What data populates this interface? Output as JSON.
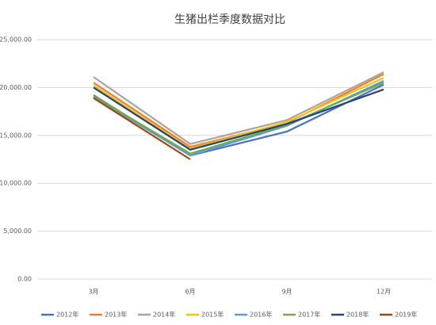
{
  "chart_data": {
    "type": "line",
    "title": "生猪出栏季度数据对比",
    "categories": [
      "3月",
      "6月",
      "9月",
      "12月"
    ],
    "series": [
      {
        "name": "2012年",
        "color": "#4472c4",
        "values": [
          19200,
          12900,
          15400,
          20300
        ]
      },
      {
        "name": "2013年",
        "color": "#ed7d31",
        "values": [
          20500,
          13800,
          16300,
          21400
        ]
      },
      {
        "name": "2014年",
        "color": "#a5a5a5",
        "values": [
          21100,
          14100,
          16600,
          21600
        ]
      },
      {
        "name": "2015年",
        "color": "#ffc000",
        "values": [
          20200,
          13600,
          16400,
          21000
        ]
      },
      {
        "name": "2016年",
        "color": "#5b9bd5",
        "values": [
          19000,
          12900,
          16000,
          20700
        ]
      },
      {
        "name": "2017年",
        "color": "#70ad47",
        "values": [
          19100,
          13100,
          16100,
          20500
        ]
      },
      {
        "name": "2018年",
        "color": "#264478",
        "values": [
          20000,
          13500,
          16200,
          19800
        ]
      },
      {
        "name": "2019年",
        "color": "#9e480e",
        "values": [
          18900,
          12500,
          null,
          null
        ]
      }
    ],
    "ylim": [
      0,
      25000
    ],
    "yticks": [
      {
        "value": 0,
        "label": "0.00"
      },
      {
        "value": 5000,
        "label": "5,000.00"
      },
      {
        "value": 10000,
        "label": "10,000.00"
      },
      {
        "value": 15000,
        "label": "15,000.00"
      },
      {
        "value": 20000,
        "label": "20,000.00"
      },
      {
        "value": 25000,
        "label": "25,000.00"
      }
    ],
    "grid": true
  }
}
